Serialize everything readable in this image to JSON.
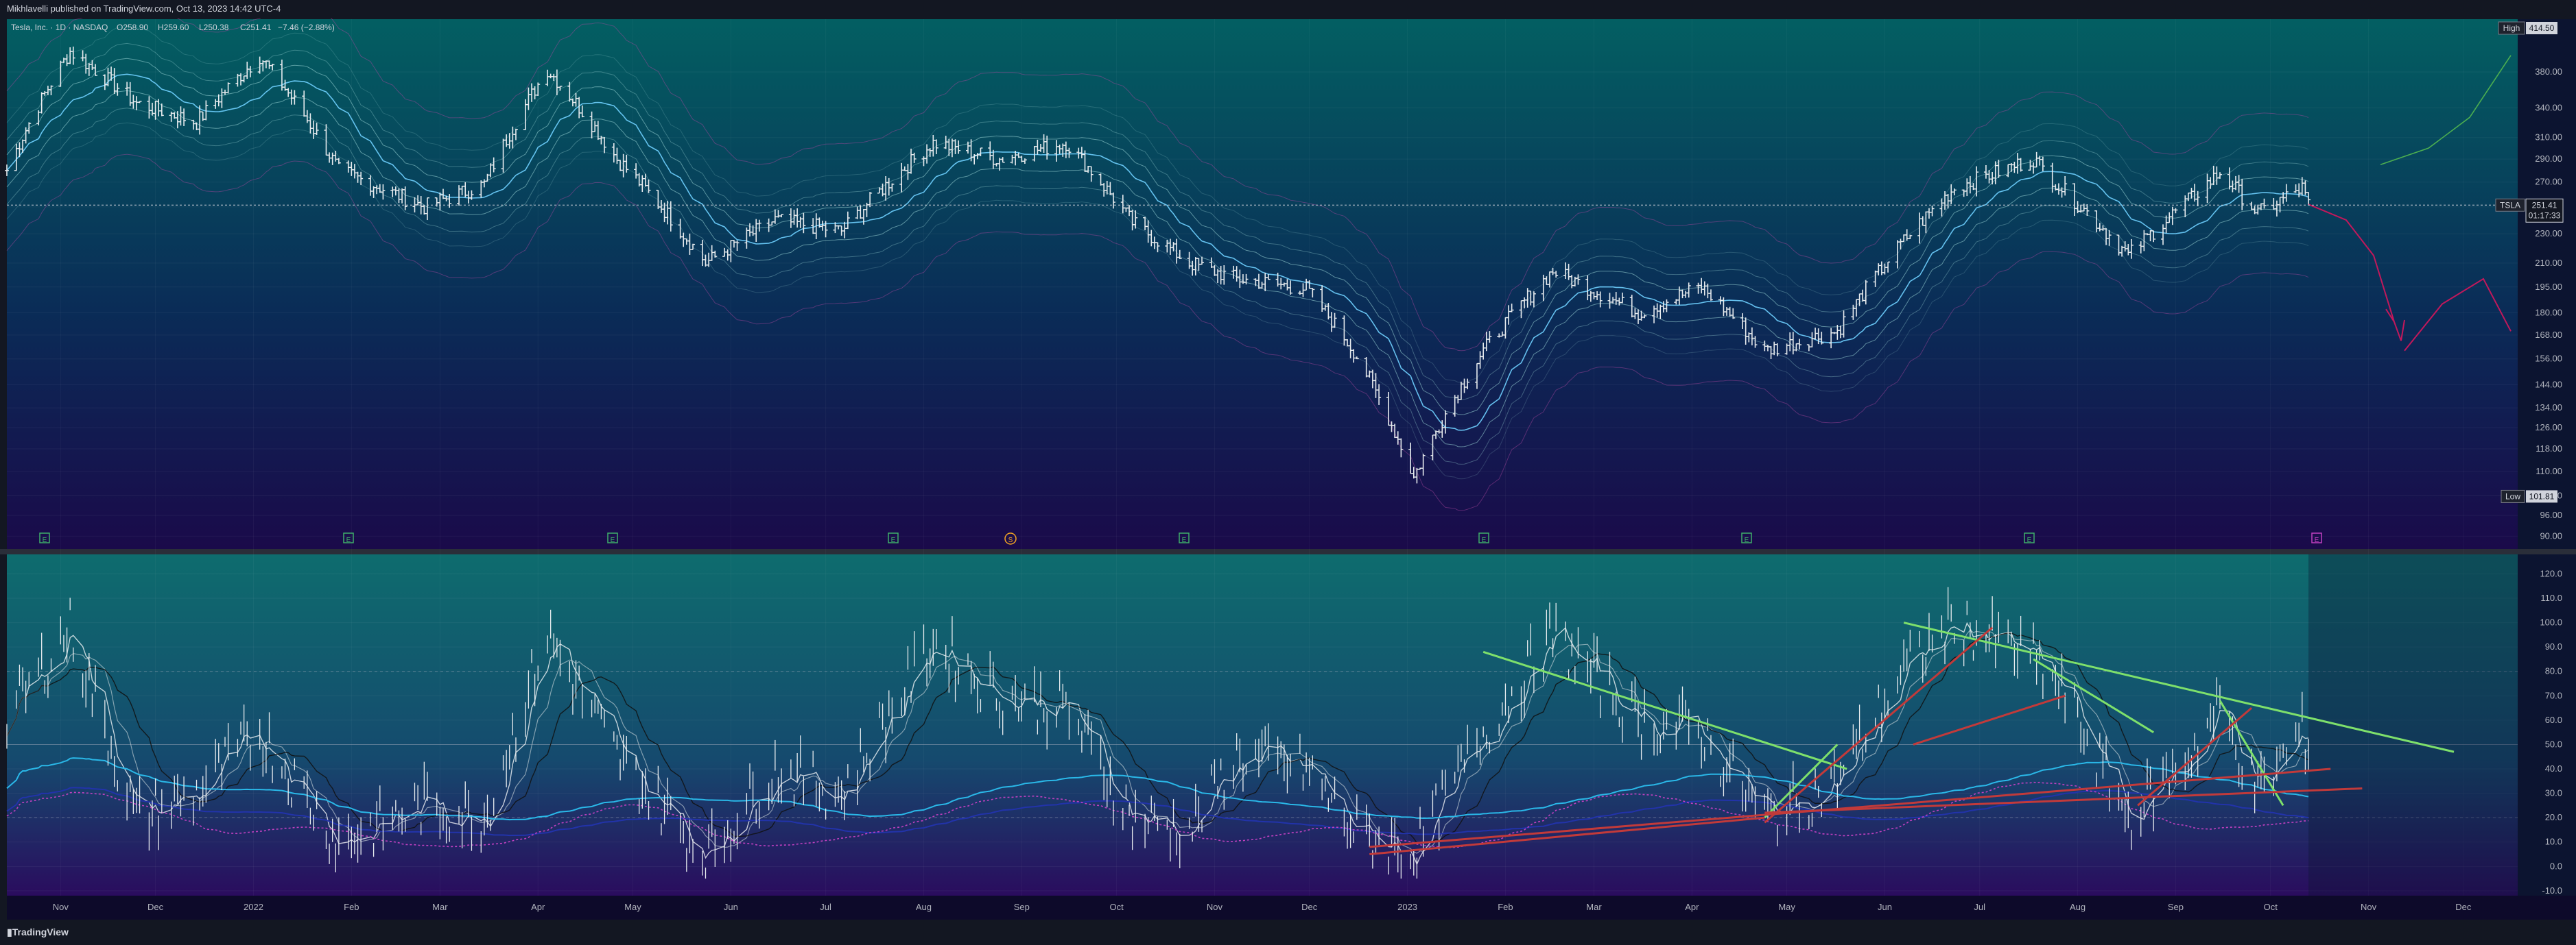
{
  "header": {
    "publish_line": "Mikhlavelli published on TradingView.com, Oct 13, 2023 14:42 UTC-4"
  },
  "footer": {
    "brand": "TradingView"
  },
  "legend": {
    "symbol_line": "Tesla, Inc. · 1D · NASDAQ",
    "open": "O258.90",
    "high": "H259.60",
    "low": "L250.38",
    "close": "C251.41",
    "change": "−7.46 (−2.88%)"
  },
  "price_badges": {
    "high_label": "High",
    "high_value": "414.50",
    "last_symbol": "TSLA",
    "last_value": "251.41",
    "countdown": "01:17:33",
    "low_label": "Low",
    "low_value": "101.81"
  },
  "colors": {
    "price_top": "#035f62",
    "price_bottom": "#1a0a4a",
    "osc_top": "#0e6c6e",
    "osc_bottom": "#2a0c5e",
    "bars": "#e8ecef",
    "band_light": "#9fd8d8",
    "band_purple": "#b046a0",
    "trend_green": "#7ee06b",
    "trend_red": "#c23a3a",
    "osc_blue": "#2ab8e8",
    "osc_navy": "#2233aa",
    "osc_magenta": "#c040c0"
  },
  "chart_data": [
    {
      "type": "line",
      "panel": "price",
      "title": "",
      "y_scale": "log",
      "ylim": [
        88,
        440
      ],
      "y_ticks": [
        "380.00",
        "340.00",
        "310.00",
        "290.00",
        "270.00",
        "250.00",
        "230.00",
        "210.00",
        "195.00",
        "180.00",
        "168.00",
        "156.00",
        "144.00",
        "134.00",
        "126.00",
        "118.00",
        "110.00",
        "102.00",
        "96.00",
        "90.00"
      ],
      "x_tick_labels": [
        "Nov",
        "Dec",
        "2022",
        "Feb",
        "Mar",
        "Apr",
        "May",
        "Jun",
        "Jul",
        "Aug",
        "Sep",
        "Oct",
        "Nov",
        "Dec",
        "2023",
        "Feb",
        "Mar",
        "Apr",
        "May",
        "Jun",
        "Jul",
        "Aug",
        "Sep",
        "Oct",
        "Nov",
        "Dec"
      ],
      "event_markers": [
        "E",
        "E",
        "E",
        "E",
        "S",
        "E",
        "E",
        "E",
        "E",
        "E",
        "E"
      ],
      "series": [
        {
          "values": [
            {
              "date": "2021-10-15",
              "close": 280
            },
            {
              "date": "2021-11-04",
              "close": 405
            },
            {
              "date": "2021-11-25",
              "close": 345
            },
            {
              "date": "2021-12-14",
              "close": 325
            },
            {
              "date": "2022-01-03",
              "close": 399
            },
            {
              "date": "2022-01-28",
              "close": 280
            },
            {
              "date": "2022-02-24",
              "close": 250
            },
            {
              "date": "2022-03-15",
              "close": 268
            },
            {
              "date": "2022-04-04",
              "close": 383
            },
            {
              "date": "2022-04-26",
              "close": 290
            },
            {
              "date": "2022-05-24",
              "close": 210
            },
            {
              "date": "2022-06-15",
              "close": 240
            },
            {
              "date": "2022-07-06",
              "close": 232
            },
            {
              "date": "2022-08-04",
              "close": 305
            },
            {
              "date": "2022-08-25",
              "close": 290
            },
            {
              "date": "2022-09-15",
              "close": 305
            },
            {
              "date": "2022-10-06",
              "close": 238
            },
            {
              "date": "2022-10-24",
              "close": 210
            },
            {
              "date": "2022-11-08",
              "close": 200
            },
            {
              "date": "2022-11-30",
              "close": 194
            },
            {
              "date": "2022-12-15",
              "close": 160
            },
            {
              "date": "2023-01-03",
              "close": 108
            },
            {
              "date": "2023-01-25",
              "close": 160
            },
            {
              "date": "2023-02-16",
              "close": 205
            },
            {
              "date": "2023-03-15",
              "close": 180
            },
            {
              "date": "2023-04-04",
              "close": 195
            },
            {
              "date": "2023-04-24",
              "close": 160
            },
            {
              "date": "2023-05-17",
              "close": 170
            },
            {
              "date": "2023-06-07",
              "close": 225
            },
            {
              "date": "2023-06-23",
              "close": 265
            },
            {
              "date": "2023-07-18",
              "close": 290
            },
            {
              "date": "2023-07-28",
              "close": 262
            },
            {
              "date": "2023-08-17",
              "close": 215
            },
            {
              "date": "2023-09-05",
              "close": 255
            },
            {
              "date": "2023-09-15",
              "close": 278
            },
            {
              "date": "2023-09-27",
              "close": 245
            },
            {
              "date": "2023-10-11",
              "close": 265
            },
            {
              "date": "2023-10-13",
              "close": 251.41
            }
          ]
        }
      ]
    },
    {
      "type": "line",
      "panel": "oscillator",
      "title": "",
      "ylim": [
        -12,
        128
      ],
      "y_ticks": [
        "120.0",
        "110.0",
        "100.0",
        "90.0",
        "80.0",
        "70.0",
        "60.0",
        "50.0",
        "40.0",
        "30.0",
        "20.0",
        "10.0",
        "0.0",
        "-10.0"
      ],
      "reference_levels": [
        80,
        50,
        20
      ],
      "series": [
        {
          "values": [
            {
              "date": "2021-10-15",
              "value": 60
            },
            {
              "date": "2021-11-04",
              "value": 98
            },
            {
              "date": "2021-11-25",
              "value": 20
            },
            {
              "date": "2021-12-14",
              "value": 30
            },
            {
              "date": "2022-01-03",
              "value": 55
            },
            {
              "date": "2022-01-28",
              "value": 10
            },
            {
              "date": "2022-02-24",
              "value": 25
            },
            {
              "date": "2022-03-15",
              "value": 20
            },
            {
              "date": "2022-04-04",
              "value": 95
            },
            {
              "date": "2022-04-26",
              "value": 45
            },
            {
              "date": "2022-05-24",
              "value": 5
            },
            {
              "date": "2022-06-15",
              "value": 40
            },
            {
              "date": "2022-07-06",
              "value": 30
            },
            {
              "date": "2022-08-04",
              "value": 92
            },
            {
              "date": "2022-08-25",
              "value": 70
            },
            {
              "date": "2022-09-15",
              "value": 65
            },
            {
              "date": "2022-10-06",
              "value": 20
            },
            {
              "date": "2022-10-24",
              "value": 15
            },
            {
              "date": "2022-11-08",
              "value": 45
            },
            {
              "date": "2022-11-30",
              "value": 40
            },
            {
              "date": "2022-12-15",
              "value": 15
            },
            {
              "date": "2023-01-03",
              "value": 5
            },
            {
              "date": "2023-01-25",
              "value": 55
            },
            {
              "date": "2023-02-16",
              "value": 95
            },
            {
              "date": "2023-03-15",
              "value": 60
            },
            {
              "date": "2023-04-04",
              "value": 55
            },
            {
              "date": "2023-04-24",
              "value": 20
            },
            {
              "date": "2023-05-17",
              "value": 35
            },
            {
              "date": "2023-06-07",
              "value": 80
            },
            {
              "date": "2023-06-23",
              "value": 100
            },
            {
              "date": "2023-07-18",
              "value": 85
            },
            {
              "date": "2023-07-28",
              "value": 70
            },
            {
              "date": "2023-08-17",
              "value": 20
            },
            {
              "date": "2023-09-05",
              "value": 45
            },
            {
              "date": "2023-09-15",
              "value": 65
            },
            {
              "date": "2023-09-27",
              "value": 30
            },
            {
              "date": "2023-10-11",
              "value": 55
            },
            {
              "date": "2023-10-13",
              "value": 50
            }
          ]
        }
      ]
    }
  ]
}
